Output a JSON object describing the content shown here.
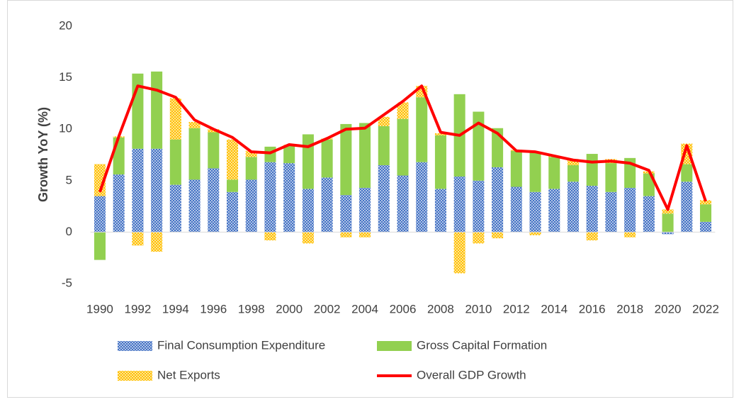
{
  "chart_data": {
    "type": "bar",
    "stacked": true,
    "y_label": "Growth YoY (%)",
    "categories": [
      "1990",
      null,
      "1992",
      null,
      "1994",
      null,
      "1996",
      null,
      "1998",
      null,
      "2000",
      null,
      "2002",
      null,
      "2004",
      null,
      "2006",
      null,
      "2008",
      null,
      "2010",
      null,
      "2012",
      null,
      "2014",
      null,
      "2016",
      null,
      "2018",
      null,
      "2020",
      null,
      "2022"
    ],
    "ylim": [
      -5,
      20
    ],
    "yticks": [
      -5,
      0,
      5,
      10,
      15,
      20
    ],
    "grid": false,
    "legend": "bottom",
    "series": [
      {
        "name": "Final Consumption Expenditure",
        "color": "#4472c4",
        "pattern": "dots",
        "type": "bar",
        "values": [
          3.5,
          5.6,
          8.1,
          8.1,
          4.6,
          5.1,
          6.2,
          3.9,
          5.1,
          6.8,
          6.7,
          4.2,
          5.3,
          3.6,
          4.3,
          6.5,
          5.5,
          6.8,
          4.2,
          5.4,
          5.0,
          6.3,
          4.4,
          3.9,
          4.2,
          4.9,
          4.5,
          3.9,
          4.3,
          3.5,
          -0.2,
          4.9,
          1.0
        ]
      },
      {
        "name": "Gross Capital Formation",
        "color": "#92d050",
        "type": "bar",
        "values": [
          -2.7,
          3.6,
          7.3,
          7.5,
          4.4,
          5.0,
          3.5,
          1.2,
          2.2,
          1.5,
          1.7,
          5.3,
          3.7,
          6.9,
          6.3,
          3.8,
          5.5,
          6.3,
          5.2,
          8.0,
          6.7,
          3.8,
          3.5,
          3.9,
          3.1,
          1.6,
          3.1,
          2.8,
          2.9,
          2.2,
          1.8,
          1.7,
          1.7
        ]
      },
      {
        "name": "Net Exports",
        "color": "#ffc000",
        "pattern": "dots",
        "type": "bar",
        "values": [
          3.1,
          0.1,
          -1.3,
          -1.9,
          4.0,
          0.6,
          0.3,
          3.9,
          0.6,
          -0.8,
          0.1,
          -1.1,
          0.1,
          -0.5,
          -0.5,
          0.9,
          1.6,
          1.1,
          0.2,
          -4.0,
          -1.1,
          -0.6,
          0.1,
          -0.3,
          0.1,
          0.6,
          -0.8,
          0.4,
          -0.5,
          0.2,
          0.4,
          2.0,
          0.4
        ]
      },
      {
        "name": "Overall GDP Growth",
        "color": "#ff0000",
        "type": "line",
        "values": [
          3.9,
          9.3,
          14.2,
          13.8,
          13.1,
          10.9,
          10.0,
          9.2,
          7.8,
          7.7,
          8.5,
          8.3,
          9.1,
          10.0,
          10.1,
          11.4,
          12.7,
          14.2,
          9.7,
          9.4,
          10.6,
          9.6,
          7.9,
          7.8,
          7.4,
          7.0,
          6.8,
          6.9,
          6.7,
          6.0,
          2.2,
          8.4,
          3.0
        ]
      }
    ]
  }
}
